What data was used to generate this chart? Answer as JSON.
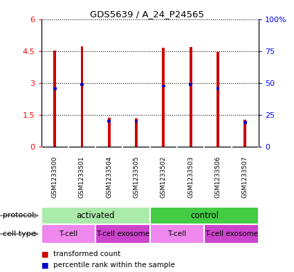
{
  "title": "GDS5639 / A_24_P24565",
  "samples": [
    "GSM1233500",
    "GSM1233501",
    "GSM1233504",
    "GSM1233505",
    "GSM1233502",
    "GSM1233503",
    "GSM1233506",
    "GSM1233507"
  ],
  "transformed_counts": [
    4.52,
    4.72,
    1.38,
    1.35,
    4.65,
    4.7,
    4.45,
    1.28
  ],
  "percentile_ranks_scaled": [
    2.73,
    2.93,
    1.22,
    1.19,
    2.85,
    2.93,
    2.73,
    1.15
  ],
  "bar_color": "#CC0000",
  "percentile_color": "#0000CC",
  "ylim_left": [
    0,
    6
  ],
  "ylim_right": [
    0,
    100
  ],
  "yticks_left": [
    0,
    1.5,
    3.0,
    4.5,
    6.0
  ],
  "ytick_labels_left": [
    "0",
    "1.5",
    "3",
    "4.5",
    "6"
  ],
  "yticks_right": [
    0,
    25,
    50,
    75,
    100
  ],
  "ytick_labels_right": [
    "0",
    "25",
    "50",
    "75",
    "100%"
  ],
  "protocol_groups": [
    {
      "label": "activated",
      "start": 0,
      "end": 4,
      "color": "#AAEAAA"
    },
    {
      "label": "control",
      "start": 4,
      "end": 8,
      "color": "#44CC44"
    }
  ],
  "cell_type_groups": [
    {
      "label": "T-cell",
      "start": 0,
      "end": 2,
      "color": "#EE88EE"
    },
    {
      "label": "T-cell exosome",
      "start": 2,
      "end": 4,
      "color": "#CC44CC"
    },
    {
      "label": "T-cell",
      "start": 4,
      "end": 6,
      "color": "#EE88EE"
    },
    {
      "label": "T-cell exosome",
      "start": 6,
      "end": 8,
      "color": "#CC44CC"
    }
  ],
  "legend_items": [
    {
      "label": "transformed count",
      "color": "#CC0000"
    },
    {
      "label": "percentile rank within the sample",
      "color": "#0000CC"
    }
  ],
  "bar_width": 0.1,
  "blue_bar_width": 0.12,
  "plot_bg_color": "#C8C8C8",
  "spine_color": "#000000"
}
